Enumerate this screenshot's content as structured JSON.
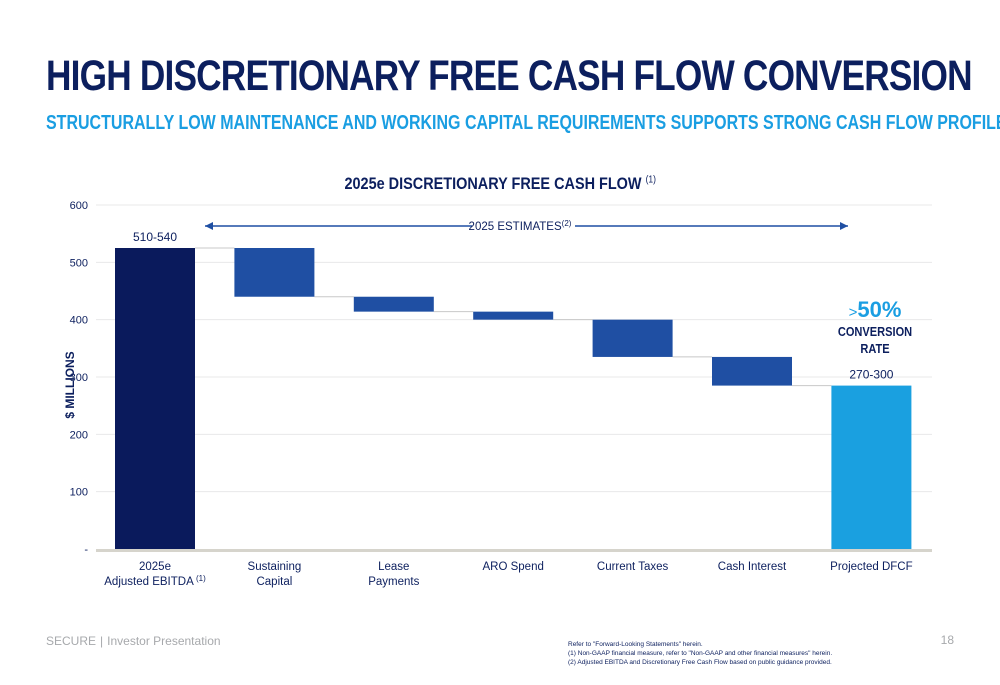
{
  "header": {
    "title": "HIGH DISCRETIONARY FREE CASH FLOW CONVERSION",
    "subtitle": "STRUCTURALLY LOW MAINTENANCE AND WORKING CAPITAL REQUIREMENTS SUPPORTS STRONG CASH FLOW PROFILE"
  },
  "callout": {
    "gt": ">",
    "value": "50%",
    "line1": "CONVERSION",
    "line2": "RATE"
  },
  "footer": {
    "brand": "SECURE",
    "separator": "|",
    "presentation": "Investor Presentation",
    "page_number": "18",
    "notes": [
      "Refer to \"Forward-Looking Statements\" herein.",
      "(1) Non-GAAP financial measure, refer to \"Non-GAAP and other financial measures\" herein.",
      "(2) Adjusted EBITDA and Discretionary Free Cash Flow based on public guidance provided."
    ]
  },
  "chart_data": {
    "type": "waterfall",
    "title": "2025e DISCRETIONARY FREE CASH FLOW",
    "title_superscript": "(1)",
    "ylabel": "$ MILLIONS",
    "ylim": [
      0,
      600
    ],
    "yticks": [
      "-",
      "100",
      "200",
      "300",
      "400",
      "500",
      "600"
    ],
    "ytick_values": [
      0,
      100,
      200,
      300,
      400,
      500,
      600
    ],
    "estimates_label": "2025 ESTIMATES",
    "estimates_superscript": "(2)",
    "categories": [
      {
        "line1": "2025e",
        "line2": "Adjusted EBITDA",
        "sup": "(1)"
      },
      {
        "line1": "Sustaining",
        "line2": "Capital",
        "sup": ""
      },
      {
        "line1": "Lease",
        "line2": "Payments",
        "sup": ""
      },
      {
        "line1": "ARO Spend",
        "line2": "",
        "sup": ""
      },
      {
        "line1": "Current Taxes",
        "line2": "",
        "sup": ""
      },
      {
        "line1": "Cash Interest",
        "line2": "",
        "sup": ""
      },
      {
        "line1": "Projected DFCF",
        "line2": "",
        "sup": ""
      }
    ],
    "bars": [
      {
        "start": 0,
        "end": 525,
        "kind": "total",
        "label": "510-540"
      },
      {
        "start": 525,
        "end": 440,
        "kind": "decrease",
        "label": ""
      },
      {
        "start": 440,
        "end": 414,
        "kind": "decrease",
        "label": ""
      },
      {
        "start": 414,
        "end": 400,
        "kind": "decrease",
        "label": ""
      },
      {
        "start": 400,
        "end": 335,
        "kind": "decrease",
        "label": ""
      },
      {
        "start": 335,
        "end": 285,
        "kind": "decrease",
        "label": ""
      },
      {
        "start": 0,
        "end": 285,
        "kind": "result",
        "label": "270-300"
      }
    ],
    "colors": {
      "total": "#0a1a5c",
      "decrease": "#1f4fa3",
      "result": "#1aa0e0",
      "text": "#0c1f5e",
      "grid": "#e8e8ea",
      "baseline": "#d6d4cc",
      "connector": "#c8c8c8"
    }
  }
}
